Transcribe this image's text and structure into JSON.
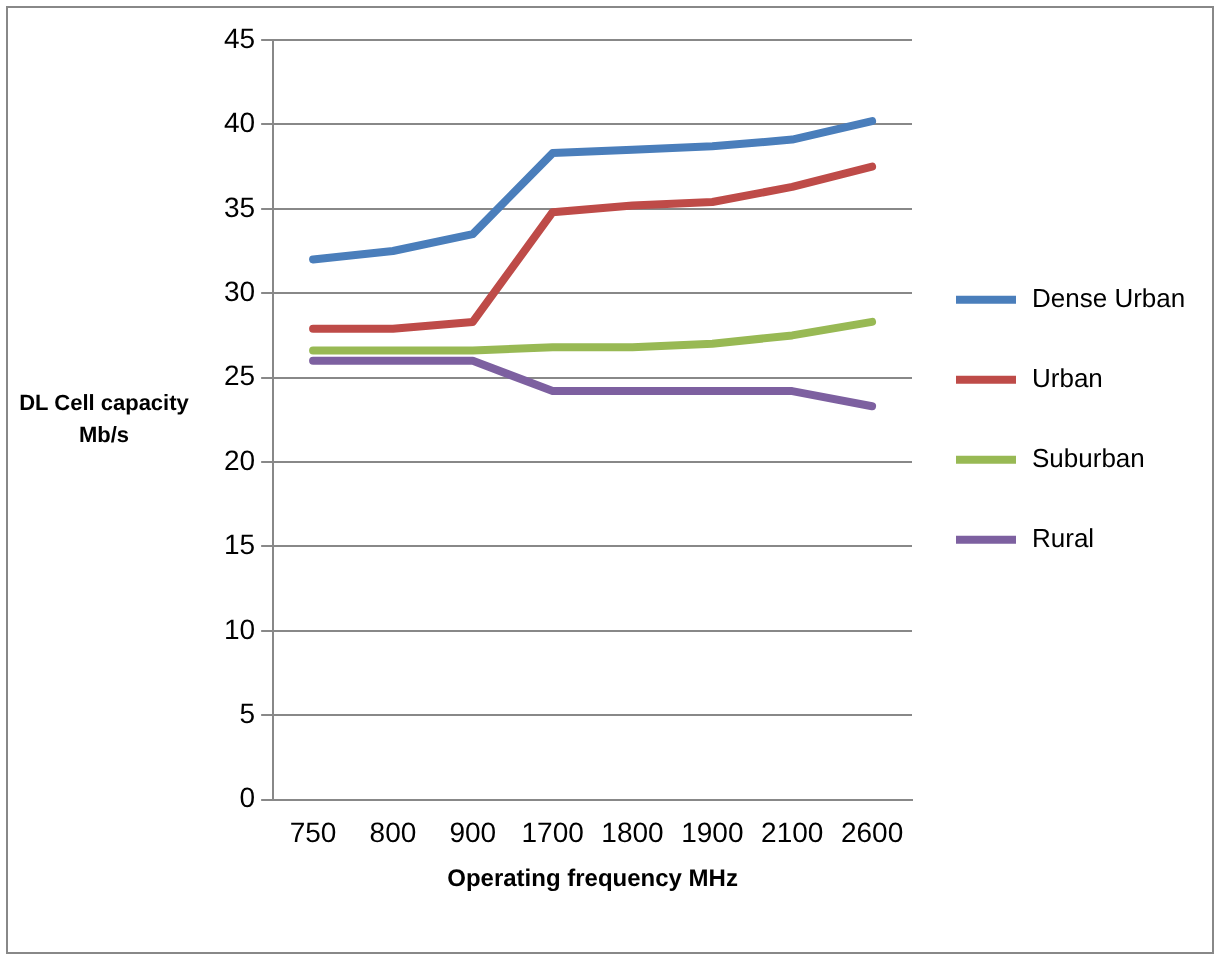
{
  "chart_data": {
    "type": "line",
    "xlabel": "Operating frequency MHz",
    "ylabel": "DL Cell capacity\nMb/s",
    "categories": [
      "750",
      "800",
      "900",
      "1700",
      "1800",
      "1900",
      "2100",
      "2600"
    ],
    "series": [
      {
        "name": "Dense Urban",
        "color": "#4a7ebb",
        "values": [
          32,
          32.5,
          33.5,
          38.3,
          38.5,
          38.7,
          39.1,
          40.2
        ]
      },
      {
        "name": "Urban",
        "color": "#be4b48",
        "values": [
          27.9,
          27.9,
          28.3,
          34.8,
          35.2,
          35.4,
          36.3,
          37.5
        ]
      },
      {
        "name": "Suburban",
        "color": "#98b954",
        "values": [
          26.6,
          26.6,
          26.6,
          26.8,
          26.8,
          27,
          27.5,
          28.3
        ]
      },
      {
        "name": "Rural",
        "color": "#7d60a0",
        "values": [
          26,
          26,
          26,
          24.2,
          24.2,
          24.2,
          24.2,
          23.3
        ]
      }
    ],
    "ylim": [
      0,
      45
    ],
    "yticks": [
      0,
      5,
      10,
      15,
      20,
      25,
      30,
      35,
      40,
      45
    ],
    "grid": "y",
    "legend": "right",
    "marker": "none",
    "line_style": "solid"
  }
}
